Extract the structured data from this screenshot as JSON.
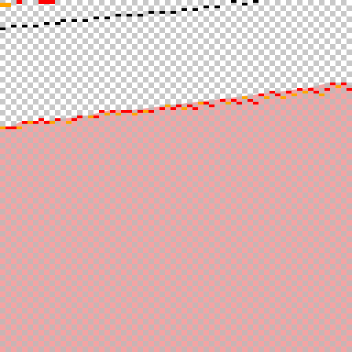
{
  "canvas": {
    "background": "transparent",
    "checker_light": "#ffffff",
    "checker_dark": "#c8c8c8"
  },
  "fill_region": {
    "overlay_color": "#f5a3a3",
    "overlay_dark_color": "#c8b4b4"
  },
  "edge_stroke": {
    "primary_color": "#ff0000",
    "secondary_color": "#ffa500"
  },
  "dashed_line": {
    "color": "#000000"
  },
  "top_left_marks": {
    "colors": [
      "#ffa500",
      "#ff0000"
    ]
  }
}
